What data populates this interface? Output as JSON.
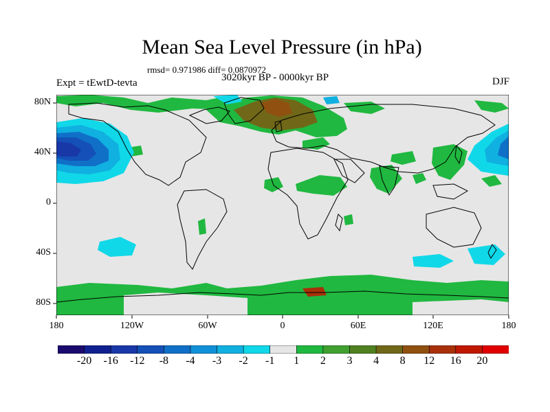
{
  "title": "Mean Sea Level Pressure (in hPa)",
  "stats": "rmsd= 0.971986 diff= 0.0870972",
  "period": "3020kyr BP - 0000kyr BP",
  "experiment": "Expt = tEwtD-tevta",
  "season": "DJF",
  "lat_labels": [
    "80N",
    "40N",
    "0",
    "40S",
    "80S"
  ],
  "lon_labels": [
    "180",
    "120W",
    "60W",
    "0",
    "60E",
    "120E",
    "180"
  ],
  "colorbar": {
    "labels": [
      "-20",
      "-16",
      "-12",
      "-8",
      "-4",
      "-3",
      "-2",
      "-1",
      "1",
      "2",
      "3",
      "4",
      "8",
      "12",
      "16",
      "20"
    ],
    "colors": [
      "#1a0a6e",
      "#102090",
      "#1838a8",
      "#1450b8",
      "#1070c8",
      "#1090d8",
      "#10b0e0",
      "#10d8e8",
      "#e6e6e6",
      "#20b840",
      "#40a030",
      "#508020",
      "#706818",
      "#905010",
      "#a83008",
      "#c01800",
      "#e00000"
    ]
  },
  "colors": {
    "ocean_land_bg": "#e6e6e6",
    "positive_1_2": "#20b840",
    "positive_high": "#706818",
    "negative_low": "#1450b8",
    "negative_mid": "#10b0e0",
    "coastline": "#000000"
  }
}
